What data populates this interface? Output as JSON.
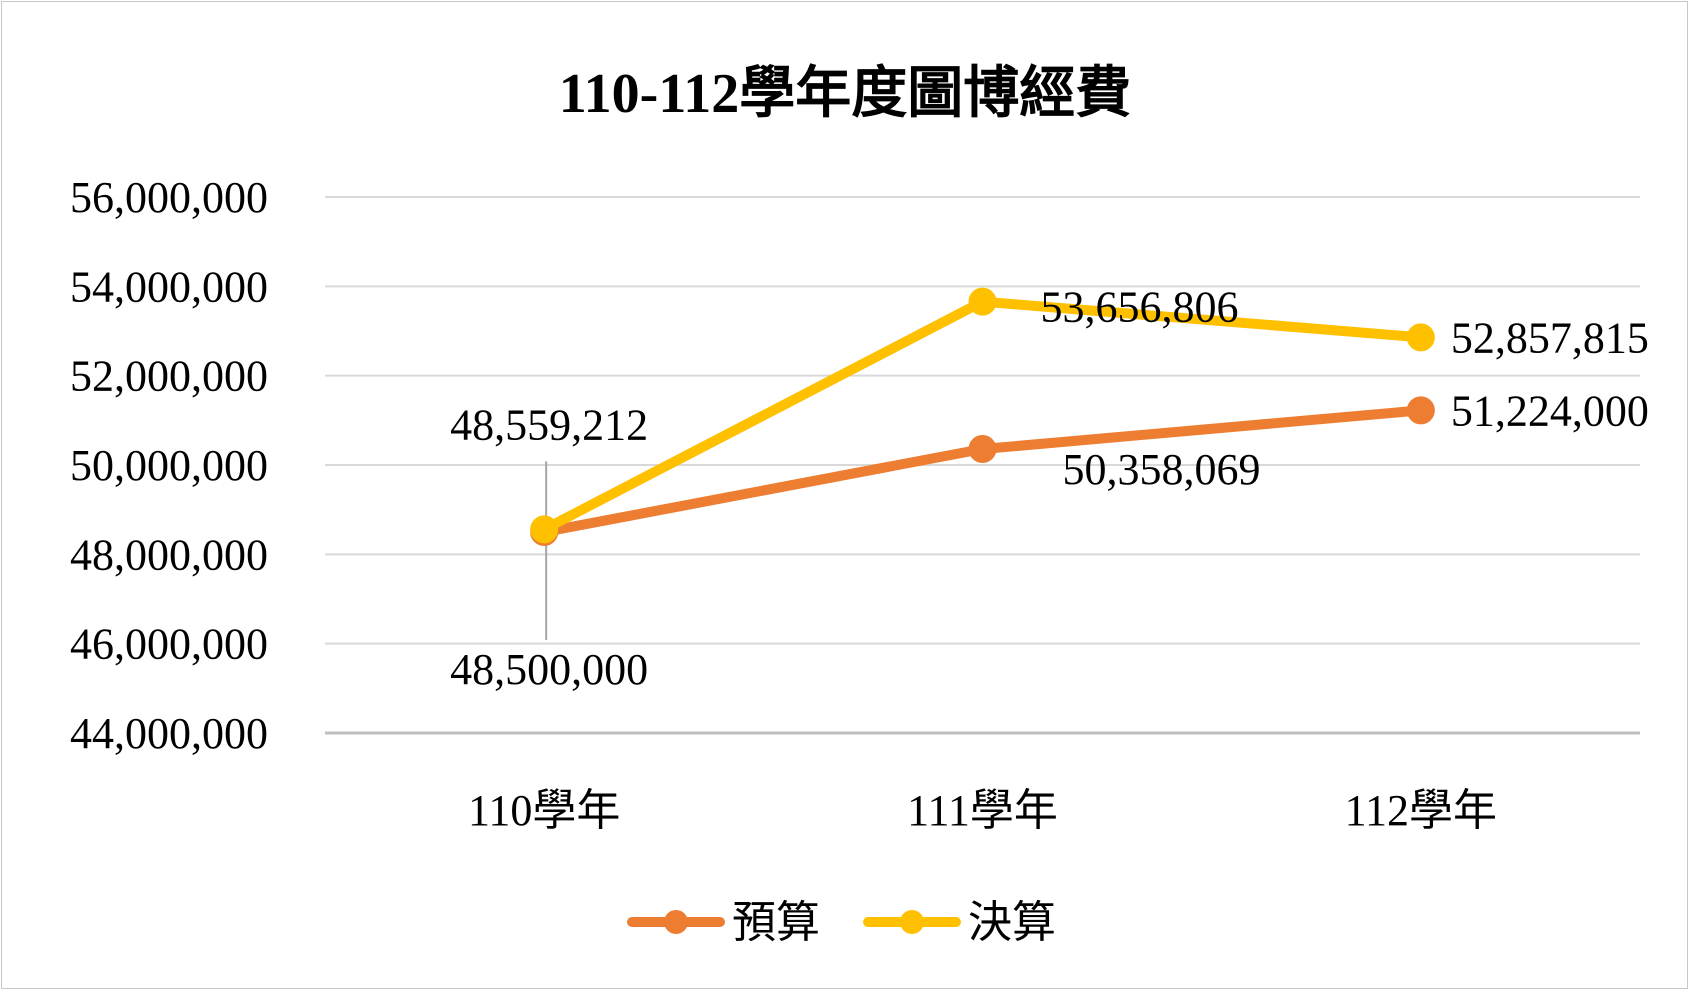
{
  "chart_data": {
    "type": "line",
    "title": "110-112學年度圖博經費",
    "categories": [
      "110學年",
      "111學年",
      "112學年"
    ],
    "ylim": [
      44000000,
      56000000
    ],
    "y_ticks": [
      44000000,
      46000000,
      48000000,
      50000000,
      52000000,
      54000000,
      56000000
    ],
    "y_tick_labels": [
      "44,000,000",
      "46,000,000",
      "48,000,000",
      "50,000,000",
      "52,000,000",
      "54,000,000",
      "56,000,000"
    ],
    "grid": true,
    "legend_position": "bottom",
    "series": [
      {
        "name": "預算",
        "color": "#ED7D31",
        "values": [
          48500000,
          50358069,
          51224000
        ],
        "labels": [
          "48,500,000",
          "50,358,069",
          "51,224,000"
        ]
      },
      {
        "name": "決算",
        "color": "#FFC000",
        "values": [
          48559212,
          53656806,
          52857815
        ],
        "labels": [
          "48,559,212",
          "53,656,806",
          "52,857,815"
        ]
      }
    ]
  }
}
